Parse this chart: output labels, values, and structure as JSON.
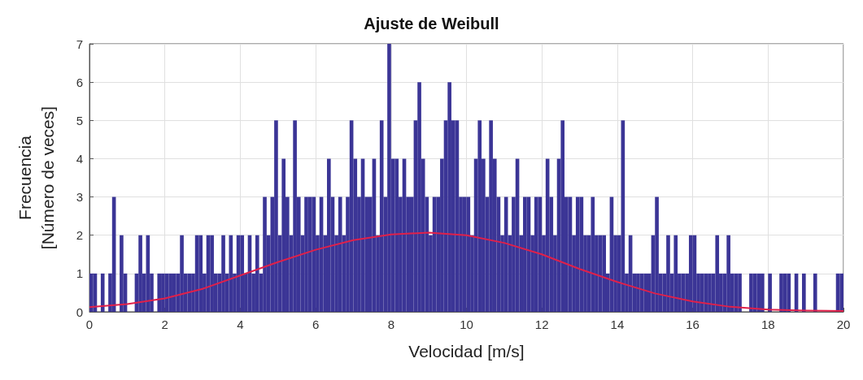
{
  "chart_data": {
    "type": "histogram",
    "title": "Ajuste de Weibull",
    "xlabel": "Velocidad [m/s]",
    "ylabel": "Frecuencia\n[Número de veces]",
    "bins": [
      0,
      0.1,
      0.2,
      0.3,
      0.4,
      0.5,
      0.6,
      0.7,
      0.8,
      0.9,
      1,
      1.1,
      1.2,
      1.3,
      1.4,
      1.5,
      1.6,
      1.7,
      1.8,
      1.9,
      2,
      2.1,
      2.2,
      2.3,
      2.4,
      2.5,
      2.6,
      2.7,
      2.8,
      2.9,
      3,
      3.1,
      3.2,
      3.3,
      3.4,
      3.5,
      3.6,
      3.7,
      3.8,
      3.9,
      4,
      4.1,
      4.2,
      4.3,
      4.4,
      4.5,
      4.6,
      4.7,
      4.8,
      4.9,
      5,
      5.1,
      5.2,
      5.3,
      5.4,
      5.5,
      5.6,
      5.7,
      5.8,
      5.9,
      6,
      6.1,
      6.2,
      6.3,
      6.4,
      6.5,
      6.6,
      6.7,
      6.8,
      6.9,
      7,
      7.1,
      7.2,
      7.3,
      7.4,
      7.5,
      7.6,
      7.7,
      7.8,
      7.9,
      8,
      8.1,
      8.2,
      8.3,
      8.4,
      8.5,
      8.6,
      8.7,
      8.8,
      8.9,
      9,
      9.1,
      9.2,
      9.3,
      9.4,
      9.5,
      9.6,
      9.7,
      9.8,
      9.9,
      10,
      10.1,
      10.2,
      10.3,
      10.4,
      10.5,
      10.6,
      10.7,
      10.8,
      10.9,
      11,
      11.1,
      11.2,
      11.3,
      11.4,
      11.5,
      11.6,
      11.7,
      11.8,
      11.9,
      12,
      12.1,
      12.2,
      12.3,
      12.4,
      12.5,
      12.6,
      12.7,
      12.8,
      12.9,
      13,
      13.1,
      13.2,
      13.3,
      13.4,
      13.5,
      13.6,
      13.7,
      13.8,
      13.9,
      14,
      14.1,
      14.2,
      14.3,
      14.4,
      14.5,
      14.6,
      14.7,
      14.8,
      14.9,
      15,
      15.1,
      15.2,
      15.3,
      15.4,
      15.5,
      15.6,
      15.7,
      15.8,
      15.9,
      16,
      16.1,
      16.2,
      16.3,
      16.4,
      16.5,
      16.6,
      16.7,
      16.8,
      16.9,
      17,
      17.1,
      17.2,
      17.3,
      17.4,
      17.5,
      17.6,
      17.7,
      17.8,
      17.9,
      18,
      18.1,
      18.2,
      18.3,
      18.4,
      18.5,
      18.6,
      18.7,
      18.8,
      18.9,
      19,
      19.1,
      19.2,
      19.3,
      19.4,
      19.5,
      19.6,
      19.7,
      19.8,
      19.9,
      20
    ],
    "values": [
      1,
      1,
      0,
      1,
      0,
      1,
      3,
      0,
      2,
      1,
      0,
      0,
      1,
      2,
      1,
      2,
      1,
      0,
      1,
      1,
      1,
      1,
      1,
      1,
      2,
      1,
      1,
      1,
      2,
      2,
      1,
      2,
      2,
      1,
      1,
      2,
      1,
      2,
      1,
      2,
      2,
      1,
      2,
      1,
      2,
      1,
      3,
      2,
      3,
      5,
      2,
      4,
      3,
      2,
      5,
      3,
      2,
      3,
      3,
      3,
      2,
      3,
      2,
      4,
      3,
      2,
      3,
      2,
      3,
      5,
      4,
      3,
      4,
      3,
      3,
      4,
      2,
      5,
      3,
      7,
      4,
      4,
      3,
      4,
      3,
      3,
      5,
      6,
      4,
      3,
      2,
      3,
      3,
      4,
      5,
      6,
      5,
      5,
      3,
      3,
      3,
      2,
      4,
      5,
      4,
      3,
      5,
      4,
      3,
      2,
      3,
      2,
      3,
      4,
      2,
      3,
      3,
      2,
      3,
      3,
      2,
      4,
      3,
      2,
      4,
      5,
      3,
      3,
      2,
      3,
      3,
      2,
      2,
      3,
      2,
      2,
      2,
      1,
      3,
      2,
      2,
      5,
      1,
      2,
      1,
      1,
      1,
      1,
      1,
      2,
      3,
      1,
      1,
      2,
      1,
      2,
      1,
      1,
      1,
      2,
      2,
      1,
      1,
      1,
      1,
      1,
      2,
      1,
      1,
      2,
      1,
      1,
      1,
      0,
      0,
      1,
      1,
      1,
      1,
      0,
      1,
      0,
      0,
      1,
      1,
      1,
      0,
      1,
      0,
      1,
      0,
      0,
      1,
      0,
      0,
      0,
      0,
      0,
      1,
      1
    ],
    "color": "#3b3596",
    "series": [
      {
        "type": "line",
        "color": "#e0204a",
        "x": [
          0,
          1,
          2,
          3,
          4,
          5,
          6,
          7,
          8,
          9,
          10,
          11,
          12,
          13,
          14,
          15,
          16,
          17,
          18,
          19,
          20
        ],
        "values": [
          0.12,
          0.2,
          0.35,
          0.6,
          0.95,
          1.3,
          1.62,
          1.87,
          2.02,
          2.07,
          2.0,
          1.8,
          1.5,
          1.12,
          0.78,
          0.48,
          0.27,
          0.13,
          0.06,
          0.03,
          0.02
        ]
      }
    ],
    "xlim": [
      0,
      20
    ],
    "xticks": [
      0,
      2,
      4,
      6,
      8,
      10,
      12,
      14,
      16,
      18,
      20
    ],
    "ylim": [
      0,
      7
    ],
    "yticks": [
      0,
      1,
      2,
      3,
      4,
      5,
      6,
      7
    ],
    "grid": true,
    "marker": "none",
    "line_style": "solid"
  }
}
